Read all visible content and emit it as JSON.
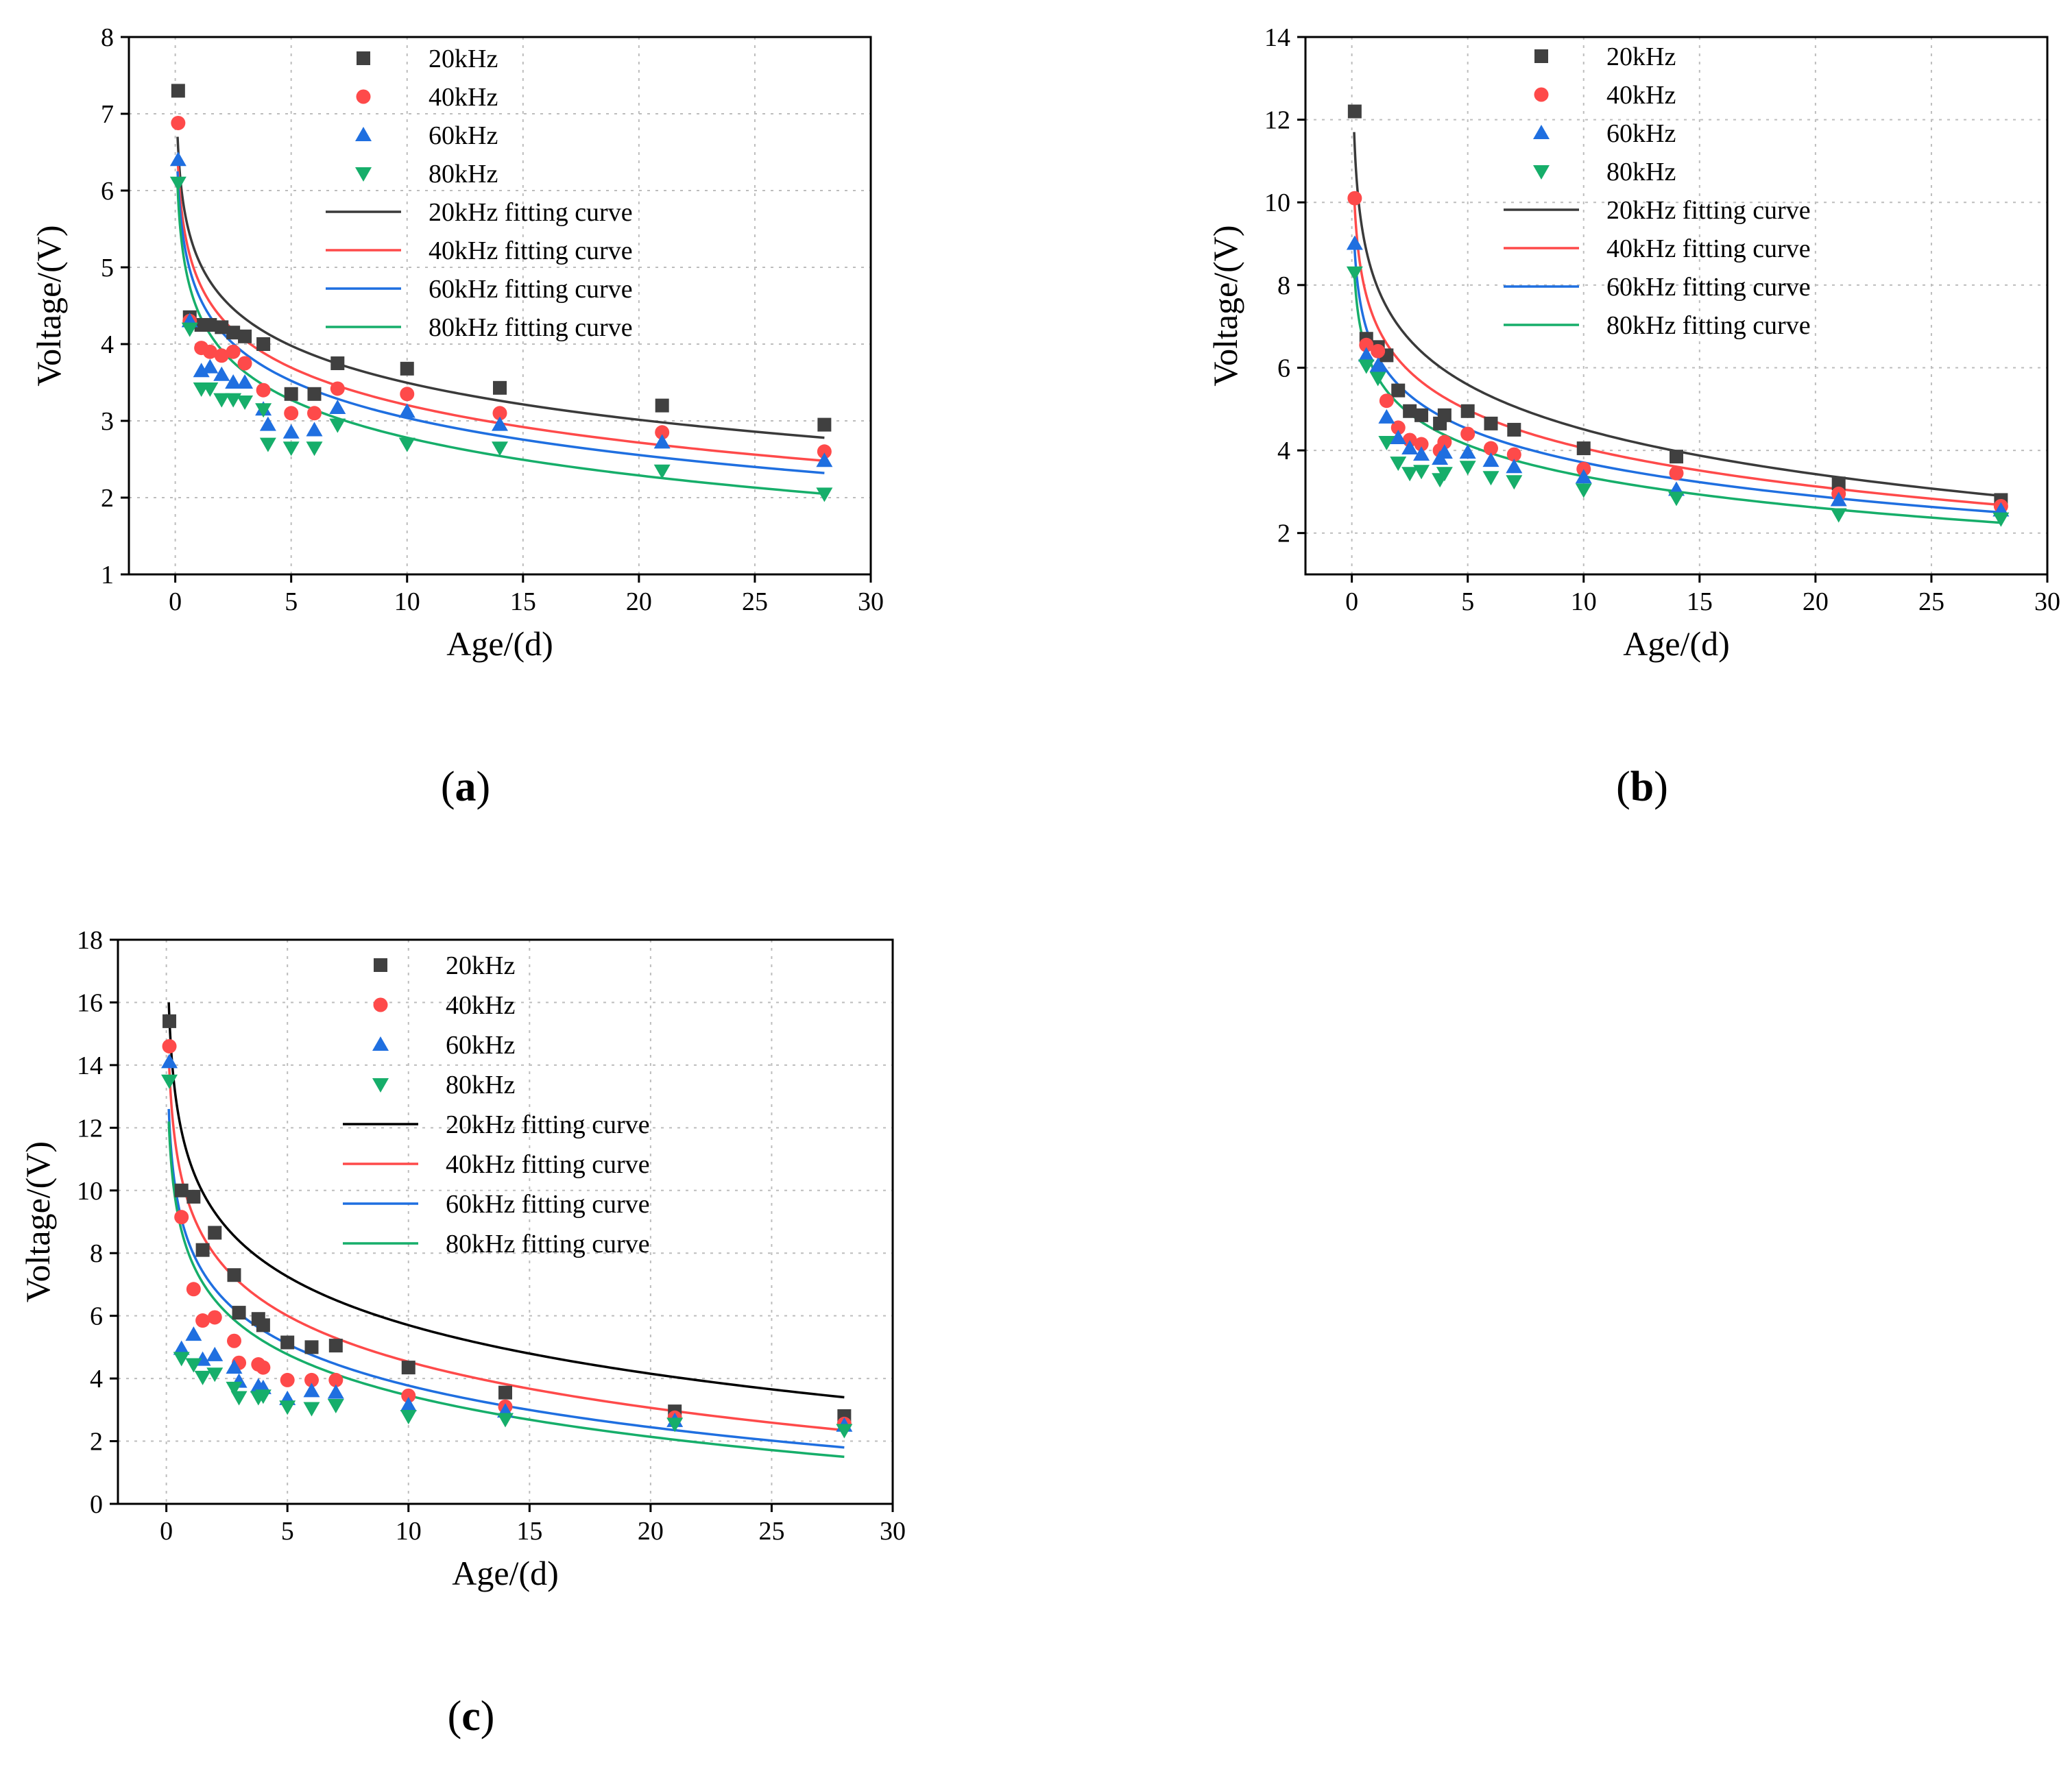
{
  "colors": {
    "20kHz": "#404040",
    "40kHz": "#fe4a4a",
    "60kHz": "#1f6fe0",
    "80kHz": "#16ae6a",
    "fit20": "#3a3a3a",
    "fit20c": "#000000"
  },
  "chart_data": [
    {
      "type": "scatter",
      "panel": "a",
      "caption_letter": "a",
      "xlabel": "Age/(d)",
      "ylabel": "Voltage/(V)",
      "xlim": [
        -2,
        30
      ],
      "ylim": [
        1,
        8
      ],
      "xticks": [
        0,
        5,
        10,
        15,
        20,
        25,
        30
      ],
      "yticks": [
        1,
        2,
        3,
        4,
        5,
        6,
        7,
        8
      ],
      "series": [
        {
          "name": "20kHz",
          "marker": "square",
          "color": "#404040",
          "x": [
            0.125,
            0.625,
            1.125,
            1.5,
            2,
            2.5,
            3,
            3.8,
            5,
            6,
            7,
            10,
            14,
            21,
            28
          ],
          "y": [
            7.3,
            4.35,
            4.25,
            4.25,
            4.22,
            4.15,
            4.1,
            4.0,
            3.35,
            3.35,
            3.75,
            3.68,
            3.43,
            3.2,
            2.95
          ]
        },
        {
          "name": "40kHz",
          "marker": "circle",
          "color": "#fe4a4a",
          "x": [
            0.125,
            0.625,
            1.125,
            1.5,
            2,
            2.5,
            3,
            3.8,
            5,
            6,
            7,
            10,
            14,
            21,
            28
          ],
          "y": [
            6.88,
            4.3,
            3.95,
            3.9,
            3.85,
            3.9,
            3.75,
            3.4,
            3.1,
            3.1,
            3.42,
            3.35,
            3.1,
            2.85,
            2.6
          ]
        },
        {
          "name": "60kHz",
          "marker": "triangle-up",
          "color": "#1f6fe0",
          "x": [
            0.125,
            0.625,
            1.125,
            1.5,
            2,
            2.5,
            3,
            3.8,
            4,
            5,
            6,
            7,
            10,
            14,
            21,
            28
          ],
          "y": [
            6.4,
            4.3,
            3.65,
            3.7,
            3.6,
            3.5,
            3.5,
            3.15,
            2.95,
            2.85,
            2.88,
            3.17,
            3.12,
            2.95,
            2.72,
            2.48
          ]
        },
        {
          "name": "80kHz",
          "marker": "triangle-down",
          "color": "#16ae6a",
          "x": [
            0.125,
            0.625,
            1.125,
            1.5,
            2,
            2.5,
            3,
            3.8,
            4,
            5,
            6,
            7,
            10,
            14,
            21,
            28
          ],
          "y": [
            6.1,
            4.2,
            3.42,
            3.42,
            3.28,
            3.28,
            3.25,
            3.15,
            2.7,
            2.65,
            2.65,
            2.95,
            2.7,
            2.65,
            2.35,
            2.05
          ]
        }
      ],
      "fits": [
        {
          "name": "20kHz fitting curve",
          "color": "#3a3a3a",
          "y_at_0.1": 6.7,
          "y_at_28": 2.78
        },
        {
          "name": "40kHz fitting curve",
          "color": "#fe4a4a",
          "y_at_0.1": 6.45,
          "y_at_28": 2.48
        },
        {
          "name": "60kHz fitting curve",
          "color": "#1f6fe0",
          "y_at_0.1": 6.25,
          "y_at_28": 2.32
        },
        {
          "name": "80kHz fitting curve",
          "color": "#16ae6a",
          "y_at_0.1": 6.05,
          "y_at_28": 2.05
        }
      ]
    },
    {
      "type": "scatter",
      "panel": "b",
      "caption_letter": "b",
      "xlabel": "Age/(d)",
      "ylabel": "Voltage/(V)",
      "xlim": [
        -2,
        30
      ],
      "ylim": [
        1,
        14
      ],
      "xticks": [
        0,
        5,
        10,
        15,
        20,
        25,
        30
      ],
      "yticks": [
        2,
        4,
        6,
        8,
        10,
        12,
        14
      ],
      "series": [
        {
          "name": "20kHz",
          "marker": "square",
          "color": "#404040",
          "x": [
            0.125,
            0.625,
            1.125,
            1.5,
            2,
            2.5,
            3,
            3.8,
            4,
            5,
            6,
            7,
            10,
            14,
            21,
            28
          ],
          "y": [
            12.2,
            6.7,
            6.5,
            6.3,
            5.45,
            4.95,
            4.85,
            4.65,
            4.85,
            4.95,
            4.65,
            4.5,
            4.05,
            3.85,
            3.2,
            2.8
          ]
        },
        {
          "name": "40kHz",
          "marker": "circle",
          "color": "#fe4a4a",
          "x": [
            0.125,
            0.625,
            1.125,
            1.5,
            2,
            2.5,
            3,
            3.8,
            4,
            5,
            6,
            7,
            10,
            14,
            21,
            28
          ],
          "y": [
            10.1,
            6.55,
            6.4,
            5.2,
            4.55,
            4.25,
            4.15,
            4.0,
            4.2,
            4.4,
            4.05,
            3.9,
            3.55,
            3.45,
            2.95,
            2.65
          ]
        },
        {
          "name": "60kHz",
          "marker": "triangle-up",
          "color": "#1f6fe0",
          "x": [
            0.125,
            0.625,
            1.125,
            1.5,
            2,
            2.5,
            3,
            3.8,
            4,
            5,
            6,
            7,
            10,
            14,
            21,
            28
          ],
          "y": [
            9.0,
            6.3,
            6.05,
            4.8,
            4.3,
            4.05,
            3.9,
            3.8,
            3.95,
            3.95,
            3.75,
            3.6,
            3.35,
            3.05,
            2.8,
            2.55
          ]
        },
        {
          "name": "80kHz",
          "marker": "triangle-down",
          "color": "#16ae6a",
          "x": [
            0.125,
            0.625,
            1.125,
            1.5,
            2,
            2.5,
            3,
            3.8,
            4,
            5,
            6,
            7,
            10,
            14,
            21,
            28
          ],
          "y": [
            8.3,
            6.05,
            5.75,
            4.2,
            3.7,
            3.45,
            3.5,
            3.3,
            3.45,
            3.6,
            3.35,
            3.25,
            3.05,
            2.85,
            2.45,
            2.35
          ]
        }
      ],
      "fits": [
        {
          "name": "20kHz fitting curve",
          "color": "#3a3a3a",
          "y_at_0.1": 11.7,
          "y_at_28": 2.9
        },
        {
          "name": "40kHz fitting curve",
          "color": "#fe4a4a",
          "y_at_0.1": 10.2,
          "y_at_28": 2.68
        },
        {
          "name": "60kHz fitting curve",
          "color": "#1f6fe0",
          "y_at_0.1": 9.1,
          "y_at_28": 2.5
        },
        {
          "name": "80kHz fitting curve",
          "color": "#16ae6a",
          "y_at_0.1": 8.4,
          "y_at_28": 2.25
        }
      ]
    },
    {
      "type": "scatter",
      "panel": "c",
      "caption_letter": "c",
      "xlabel": "Age/(d)",
      "ylabel": "Voltage/(V)",
      "xlim": [
        -2,
        30
      ],
      "ylim": [
        0,
        18
      ],
      "xticks": [
        0,
        5,
        10,
        15,
        20,
        25,
        30
      ],
      "yticks": [
        0,
        2,
        4,
        6,
        8,
        10,
        12,
        14,
        16,
        18
      ],
      "series": [
        {
          "name": "20kHz",
          "marker": "square",
          "color": "#404040",
          "x": [
            0.125,
            0.625,
            1.125,
            1.5,
            2,
            2.8,
            3,
            3.8,
            4,
            5,
            6,
            7,
            10,
            14,
            21,
            28
          ],
          "y": [
            15.4,
            10.0,
            9.8,
            8.1,
            8.65,
            7.3,
            6.1,
            5.9,
            5.7,
            5.15,
            5.0,
            5.05,
            4.35,
            3.55,
            2.95,
            2.8
          ]
        },
        {
          "name": "40kHz",
          "marker": "circle",
          "color": "#fe4a4a",
          "x": [
            0.125,
            0.625,
            1.125,
            1.5,
            2,
            2.8,
            3,
            3.8,
            4,
            5,
            6,
            7,
            10,
            14,
            21,
            28
          ],
          "y": [
            14.6,
            9.15,
            6.85,
            5.85,
            5.95,
            5.2,
            4.5,
            4.45,
            4.35,
            3.95,
            3.95,
            3.95,
            3.45,
            3.1,
            2.75,
            2.55
          ]
        },
        {
          "name": "60kHz",
          "marker": "triangle-up",
          "color": "#1f6fe0",
          "x": [
            0.125,
            0.625,
            1.125,
            1.5,
            2,
            2.8,
            3,
            3.8,
            4,
            5,
            6,
            7,
            10,
            14,
            21,
            28
          ],
          "y": [
            14.1,
            4.95,
            5.4,
            4.6,
            4.75,
            4.35,
            3.9,
            3.75,
            3.7,
            3.35,
            3.6,
            3.55,
            3.15,
            2.95,
            2.65,
            2.5
          ]
        },
        {
          "name": "80kHz",
          "marker": "triangle-down",
          "color": "#16ae6a",
          "x": [
            0.125,
            0.625,
            1.125,
            1.5,
            2,
            2.8,
            3,
            3.8,
            4,
            5,
            6,
            7,
            10,
            14,
            21,
            28
          ],
          "y": [
            13.5,
            4.65,
            4.45,
            4.05,
            4.15,
            3.7,
            3.4,
            3.4,
            3.45,
            3.1,
            3.05,
            3.15,
            2.8,
            2.7,
            2.55,
            2.35
          ]
        }
      ],
      "fits": [
        {
          "name": "20kHz fitting curve",
          "color": "#000000",
          "y_at_0.1": 16.0,
          "y_at_28": 3.4
        },
        {
          "name": "40kHz fitting curve",
          "color": "#fe4a4a",
          "y_at_0.1": 14.3,
          "y_at_28": 2.35
        },
        {
          "name": "60kHz fitting curve",
          "color": "#1f6fe0",
          "y_at_0.1": 12.6,
          "y_at_28": 1.8
        },
        {
          "name": "80kHz fitting curve",
          "color": "#16ae6a",
          "y_at_0.1": 12.2,
          "y_at_28": 1.5
        }
      ]
    }
  ]
}
